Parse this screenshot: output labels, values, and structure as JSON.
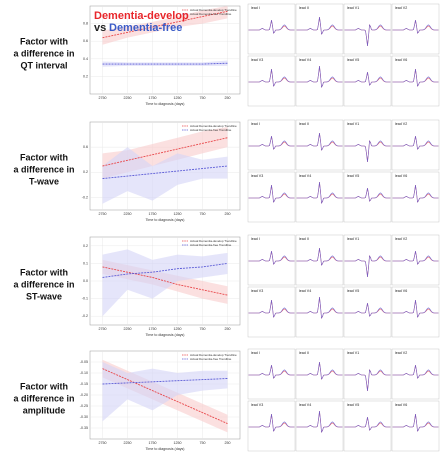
{
  "title_parts": [
    "Dementia-develop",
    "vs",
    "Dementia-free"
  ],
  "row_labels": [
    [
      "Factor with",
      "a difference in",
      "QT interval"
    ],
    [
      "Factor with",
      "a difference in",
      "T-wave"
    ],
    [
      "Factor with",
      "a difference in",
      "ST-wave"
    ],
    [
      "Factor with",
      "a difference in",
      "amplitude"
    ]
  ],
  "leads": [
    "lead I",
    "lead II",
    "lead V1",
    "lead V2",
    "lead V3",
    "lead V4",
    "lead V5",
    "lead V6"
  ],
  "chart_data": [
    {
      "type": "line",
      "xlabel": "Time to diagnosis (days)",
      "x": [
        2750,
        2250,
        1750,
        1250,
        750,
        250
      ],
      "xlim": [
        3000,
        0
      ],
      "xticks": [
        2750,
        2250,
        1750,
        1250,
        750,
        250
      ],
      "ylim": [
        0,
        1
      ],
      "yticks": [
        0.2,
        0.4,
        0.6,
        0.8
      ],
      "series": [
        {
          "name": "Actual Dementia-develop Trendline",
          "color": "#e8474a",
          "band_color": "#f8cccc",
          "values": [
            0.64,
            0.7,
            0.76,
            0.82,
            0.88,
            0.94
          ],
          "band_low": [
            0.56,
            0.64,
            0.7,
            0.76,
            0.8,
            0.86
          ],
          "band_high": [
            0.72,
            0.77,
            0.82,
            0.88,
            0.95,
            1.0
          ]
        },
        {
          "name": "Actual Dementia-free Trendline",
          "color": "#5b5bd6",
          "band_color": "#d4d4f6",
          "values": [
            0.34,
            0.34,
            0.34,
            0.34,
            0.34,
            0.35
          ],
          "band_low": [
            0.31,
            0.32,
            0.32,
            0.32,
            0.32,
            0.32
          ],
          "band_high": [
            0.37,
            0.36,
            0.36,
            0.36,
            0.36,
            0.38
          ]
        }
      ]
    },
    {
      "type": "line",
      "xlabel": "Time to diagnosis (days)",
      "x": [
        2750,
        2250,
        1750,
        1250,
        750,
        250
      ],
      "xlim": [
        3000,
        0
      ],
      "xticks": [
        2750,
        2250,
        1750,
        1250,
        750,
        250
      ],
      "ylim": [
        -0.4,
        1
      ],
      "yticks": [
        -0.2,
        0.2,
        0.6
      ],
      "series": [
        {
          "name": "Actual Dementia-develop Trendline",
          "color": "#e8474a",
          "band_color": "#f8cccc",
          "values": [
            0.3,
            0.39,
            0.48,
            0.57,
            0.66,
            0.75
          ],
          "band_low": [
            0.1,
            0.2,
            0.3,
            0.4,
            0.5,
            0.6
          ],
          "band_high": [
            0.5,
            0.55,
            0.65,
            0.75,
            0.85,
            0.92
          ]
        },
        {
          "name": "Actual Dementia-free Trendline",
          "color": "#5b5bd6",
          "band_color": "#d4d4f6",
          "values": [
            0.1,
            0.14,
            0.18,
            0.22,
            0.26,
            0.3
          ],
          "band_low": [
            -0.3,
            -0.1,
            -0.25,
            0.0,
            0.1,
            0.1
          ],
          "band_high": [
            0.3,
            0.6,
            0.3,
            0.5,
            0.4,
            0.45
          ]
        }
      ]
    },
    {
      "type": "line",
      "xlabel": "Time to diagnosis (days)",
      "x": [
        2750,
        2250,
        1750,
        1250,
        750,
        250
      ],
      "xlim": [
        3000,
        0
      ],
      "xticks": [
        2750,
        2250,
        1750,
        1250,
        750,
        250
      ],
      "ylim": [
        -0.25,
        0.25
      ],
      "yticks": [
        -0.2,
        -0.1,
        {
          "value": 0,
          "label": "0.0"
        },
        0.1,
        0.2
      ],
      "series": [
        {
          "name": "Actual Dementia-develop Trendline",
          "color": "#e8474a",
          "band_color": "#f8cccc",
          "values": [
            0.08,
            0.05,
            0.02,
            -0.02,
            -0.05,
            -0.08
          ],
          "band_low": [
            0.04,
            0.01,
            -0.02,
            -0.06,
            -0.1,
            -0.13
          ],
          "band_high": [
            0.12,
            0.09,
            0.06,
            0.03,
            0.0,
            -0.03
          ]
        },
        {
          "name": "Actual Dementia-free Trendline",
          "color": "#5b5bd6",
          "band_color": "#d4d4f6",
          "values": [
            0.02,
            0.04,
            0.05,
            0.07,
            0.08,
            0.1
          ],
          "band_low": [
            -0.2,
            -0.05,
            -0.1,
            0.0,
            0.02,
            0.04
          ],
          "band_high": [
            0.15,
            0.18,
            0.12,
            0.15,
            0.14,
            0.16
          ]
        }
      ]
    },
    {
      "type": "line",
      "xlabel": "Time to diagnosis (days)",
      "x": [
        2750,
        2250,
        1750,
        1250,
        750,
        250
      ],
      "xlim": [
        3000,
        0
      ],
      "xticks": [
        2750,
        2250,
        1750,
        1250,
        750,
        250
      ],
      "ylim": [
        -0.4,
        0
      ],
      "yticks": [
        -0.05,
        {
          "value": -0.1,
          "label": "-0.10"
        },
        -0.15,
        {
          "value": -0.2,
          "label": "-0.20"
        },
        -0.25,
        {
          "value": -0.3,
          "label": "-0.30"
        },
        -0.35
      ],
      "series": [
        {
          "name": "Actual Dementia-develop Trendline",
          "color": "#e8474a",
          "band_color": "#f8cccc",
          "values": [
            -0.08,
            -0.13,
            -0.18,
            -0.23,
            -0.28,
            -0.33
          ],
          "band_low": [
            -0.12,
            -0.17,
            -0.22,
            -0.27,
            -0.32,
            -0.37
          ],
          "band_high": [
            -0.04,
            -0.09,
            -0.14,
            -0.19,
            -0.24,
            -0.29
          ]
        },
        {
          "name": "Actual Dementia-free Trendline",
          "color": "#5b5bd6",
          "band_color": "#d4d4f6",
          "values": [
            -0.15,
            -0.145,
            -0.14,
            -0.135,
            -0.13,
            -0.125
          ],
          "band_low": [
            -0.32,
            -0.22,
            -0.27,
            -0.2,
            -0.18,
            -0.17
          ],
          "band_high": [
            -0.05,
            -0.1,
            -0.08,
            -0.1,
            -0.09,
            -0.09
          ]
        }
      ]
    }
  ]
}
